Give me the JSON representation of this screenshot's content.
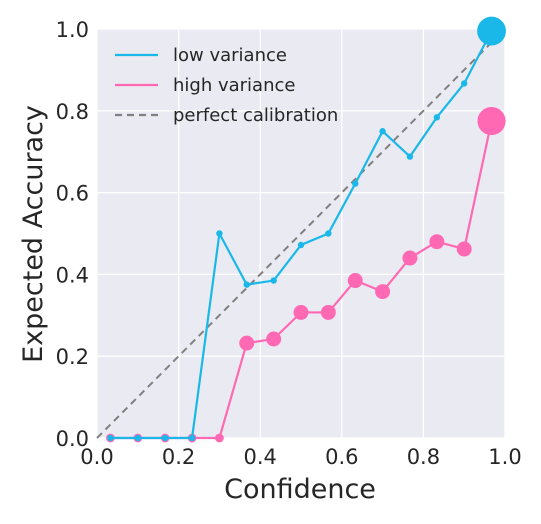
{
  "chart_data": {
    "type": "line",
    "xlabel": "Confidence",
    "ylabel": "Expected Accuracy",
    "xlim": [
      0.0,
      1.0
    ],
    "ylim": [
      0.0,
      1.0
    ],
    "xticks": [
      "0.0",
      "0.2",
      "0.4",
      "0.6",
      "0.8",
      "1.0"
    ],
    "yticks": [
      "0.0",
      "0.2",
      "0.4",
      "0.6",
      "0.8",
      "1.0"
    ],
    "grid": true,
    "legend_position": "top-left",
    "series": [
      {
        "name": "low variance",
        "color": "#1ab8e8",
        "x": [
          0.033,
          0.1,
          0.167,
          0.233,
          0.3,
          0.367,
          0.433,
          0.5,
          0.567,
          0.633,
          0.7,
          0.767,
          0.833,
          0.9,
          0.967
        ],
        "y": [
          0.0,
          0.0,
          0.0,
          0.0,
          0.5,
          0.375,
          0.385,
          0.472,
          0.5,
          0.622,
          0.75,
          0.688,
          0.784,
          0.867,
          0.995
        ],
        "marker_size": [
          1,
          1,
          1,
          1,
          1,
          1,
          1,
          1,
          1,
          1,
          1,
          1,
          1,
          1,
          4.5
        ]
      },
      {
        "name": "high variance",
        "color": "#ff69b4",
        "x": [
          0.033,
          0.1,
          0.167,
          0.233,
          0.3,
          0.367,
          0.433,
          0.5,
          0.567,
          0.633,
          0.7,
          0.767,
          0.833,
          0.9,
          0.967
        ],
        "y": [
          0.0,
          0.0,
          0.0,
          0.0,
          0.0,
          0.232,
          0.242,
          0.307,
          0.307,
          0.385,
          0.358,
          0.44,
          0.48,
          0.462,
          0.775
        ],
        "marker_size": [
          1,
          1,
          1,
          1,
          1,
          1.7,
          1.7,
          1.7,
          1.7,
          1.7,
          1.7,
          1.7,
          1.7,
          1.7,
          3.2
        ]
      },
      {
        "name": "perfect calibration",
        "color": "#808080",
        "dashed": true,
        "x": [
          0.0,
          1.0
        ],
        "y": [
          0.0,
          1.0
        ]
      }
    ]
  }
}
